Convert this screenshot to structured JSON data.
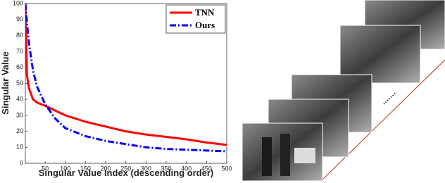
{
  "chart_data": {
    "type": "line",
    "x_label": "Singular Value Index (descending order)",
    "y_label": "Singular Value",
    "x": [
      1,
      5,
      10,
      20,
      30,
      50,
      75,
      100,
      150,
      200,
      250,
      300,
      350,
      400,
      450,
      500
    ],
    "series": [
      {
        "name": "TNN",
        "color": "#ff0000",
        "dash": "solid",
        "values": [
          100,
          55,
          47,
          40,
          38,
          36,
          33,
          30,
          26,
          23,
          20,
          18,
          16.5,
          15,
          13,
          11.5
        ]
      },
      {
        "name": "Ours",
        "color": "#0000ff",
        "dash": "dashdot",
        "values": [
          100,
          88,
          75,
          58,
          48,
          37,
          28,
          22,
          17,
          14,
          12,
          10,
          9,
          8.5,
          8,
          7.5
        ]
      }
    ],
    "xlim": [
      1,
      500
    ],
    "ylim": [
      0,
      100
    ],
    "xticks": [
      50,
      100,
      150,
      200,
      250,
      300,
      350,
      400,
      450,
      500
    ],
    "yticks": [
      0,
      10,
      20,
      30,
      40,
      50,
      60,
      70,
      80,
      90,
      100
    ],
    "legend": "upper right"
  }
}
